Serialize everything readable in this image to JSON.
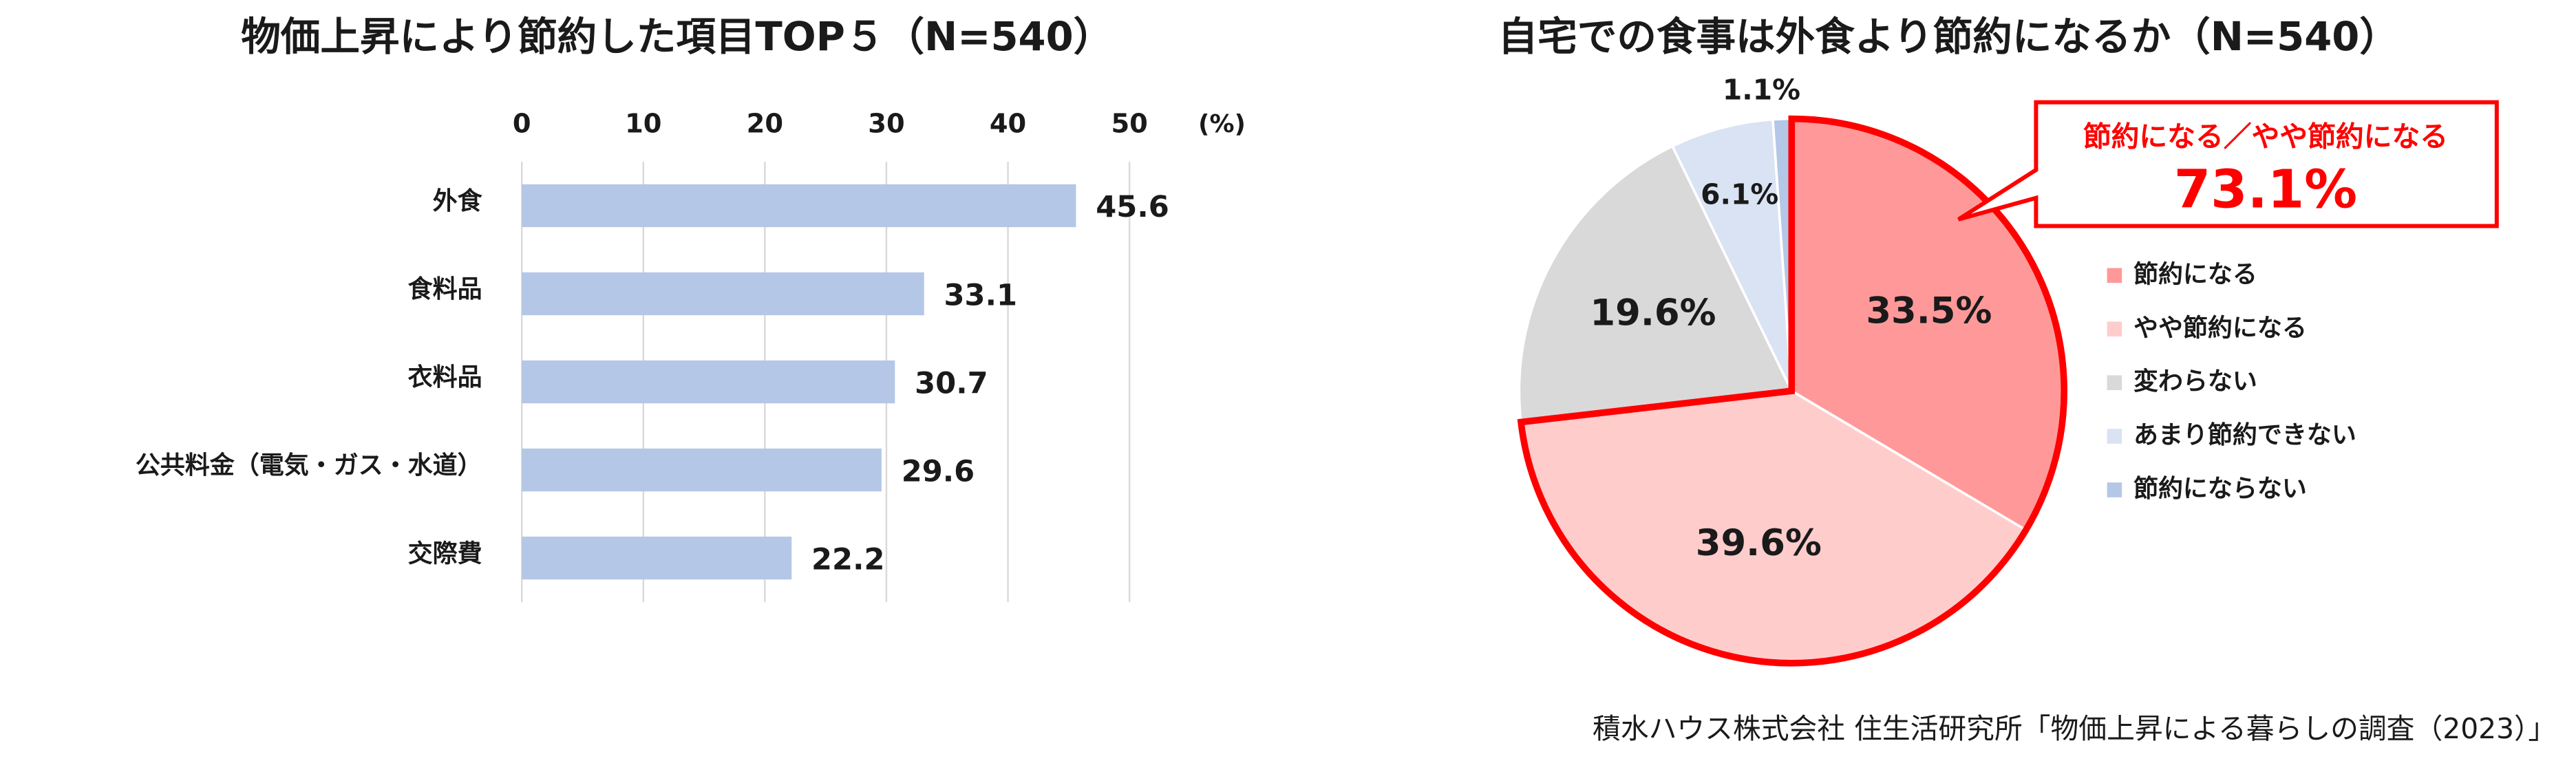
{
  "chart_data": [
    {
      "type": "bar",
      "orientation": "horizontal",
      "title": "物価上昇により節約した項目TOP５（N=540）",
      "x_label": "(%)",
      "categories": [
        "外食",
        "食料品",
        "衣料品",
        "公共料金（電気・ガス・水道）",
        "交際費"
      ],
      "values": [
        45.6,
        33.1,
        30.7,
        29.6,
        22.2
      ],
      "color": "#b4c7e7",
      "xlim": [
        0,
        50
      ],
      "xticks": [
        0,
        10,
        20,
        30,
        40,
        50
      ],
      "grid": true
    },
    {
      "type": "pie",
      "title": "自宅での食事は外食より節約になるか（N=540）",
      "categories": [
        "節約になる",
        "やや節約になる",
        "変わらない",
        "あまり節約できない",
        "節約にならない"
      ],
      "values": [
        33.5,
        39.6,
        19.6,
        6.1,
        1.1
      ],
      "value_labels": [
        "33.5%",
        "39.6%",
        "19.6%",
        "6.1%",
        "1.1%"
      ],
      "colors": [
        "#ff9999",
        "#ffcccc",
        "#d9d9d9",
        "#dae3f3",
        "#b4c7e7"
      ],
      "legend": "right",
      "annotation": {
        "text": "節約になる／やや節約になる",
        "value_label": "73.1%"
      }
    }
  ],
  "source": "積水ハウス株式会社 住生活研究所「物価上昇による暮らしの調査（2023）」"
}
